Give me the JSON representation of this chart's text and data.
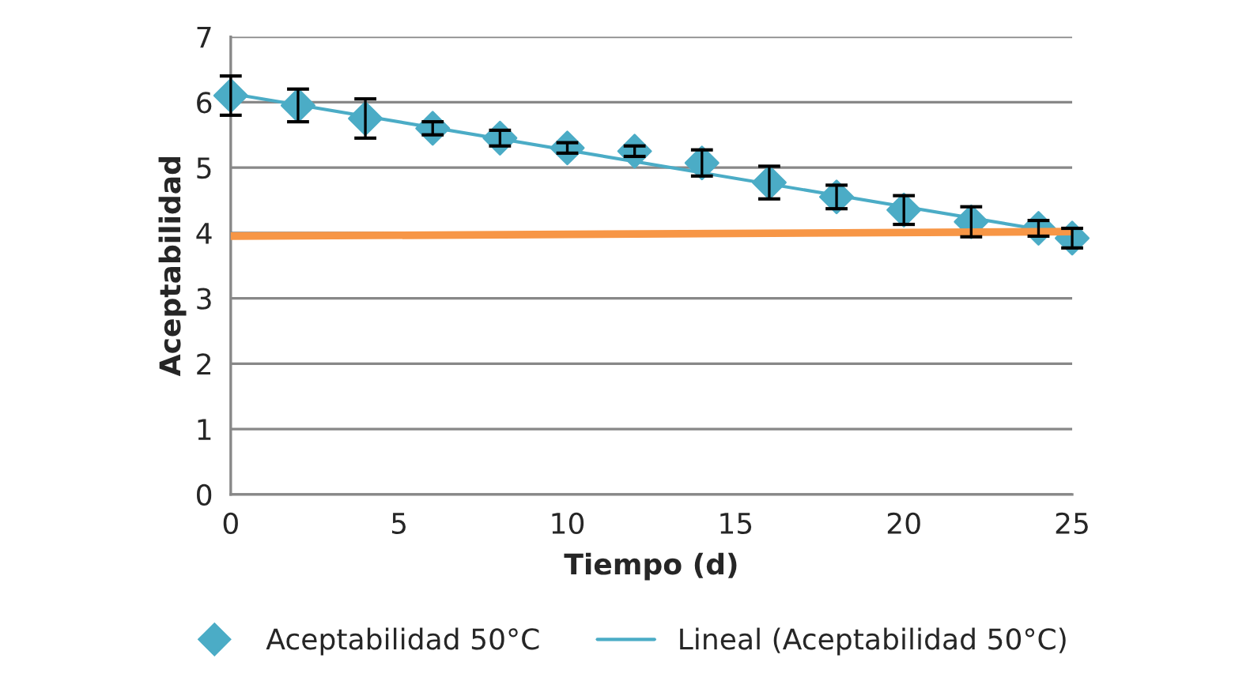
{
  "chart_data": {
    "type": "scatter",
    "xlabel": "Tiempo (d)",
    "ylabel": "Aceptabilidad",
    "xlim": [
      0,
      25
    ],
    "xticks": [
      0,
      5,
      10,
      15,
      20,
      25
    ],
    "ylim": [
      0,
      7
    ],
    "yticks": [
      0,
      1,
      2,
      3,
      4,
      5,
      6,
      7
    ],
    "grid": "y",
    "legend": "bottom",
    "series": [
      {
        "name": "Aceptabilidad 50°C",
        "marker": "diamond",
        "color": "#4bacc6",
        "x": [
          0,
          2,
          4,
          6,
          8,
          10,
          12,
          14,
          16,
          18,
          20,
          22,
          24,
          25
        ],
        "values": [
          6.1,
          5.95,
          5.75,
          5.6,
          5.45,
          5.3,
          5.25,
          5.07,
          4.77,
          4.55,
          4.35,
          4.17,
          4.07,
          3.92
        ],
        "errors": [
          0.3,
          0.25,
          0.3,
          0.1,
          0.12,
          0.08,
          0.08,
          0.2,
          0.25,
          0.18,
          0.22,
          0.23,
          0.12,
          0.15
        ]
      },
      {
        "name": "Lineal (Aceptabilidad 50°C)",
        "type": "line",
        "color": "#4bacc6",
        "x": [
          0,
          25
        ],
        "values": [
          6.13,
          3.97
        ]
      },
      {
        "type": "line",
        "color": "#f79646",
        "x": [
          0,
          25
        ],
        "values": [
          3.95,
          4.02
        ]
      }
    ]
  }
}
